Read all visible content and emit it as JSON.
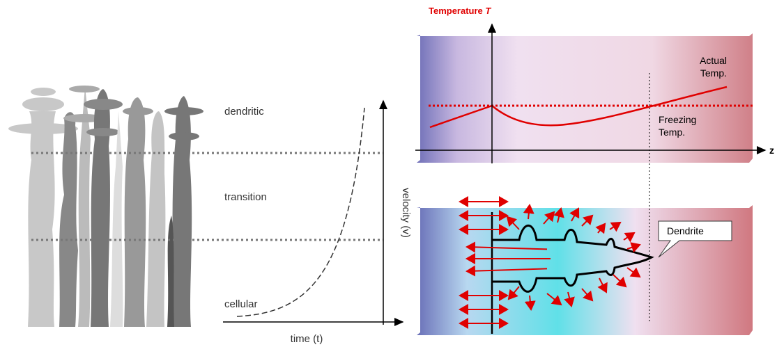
{
  "left_panel": {
    "regimes": [
      "dendritic",
      "transition",
      "cellular"
    ],
    "y_axis_label": "velocity (v)",
    "x_axis_label": "time (t)"
  },
  "top_panel": {
    "axis_label": "Temperature",
    "axis_variable": "T",
    "z_label": "z",
    "actual_temp": [
      "Actual",
      "Temp."
    ],
    "freezing_temp": [
      "Freezing",
      "Temp."
    ]
  },
  "bottom_panel": {
    "callout": "Dendrite"
  }
}
